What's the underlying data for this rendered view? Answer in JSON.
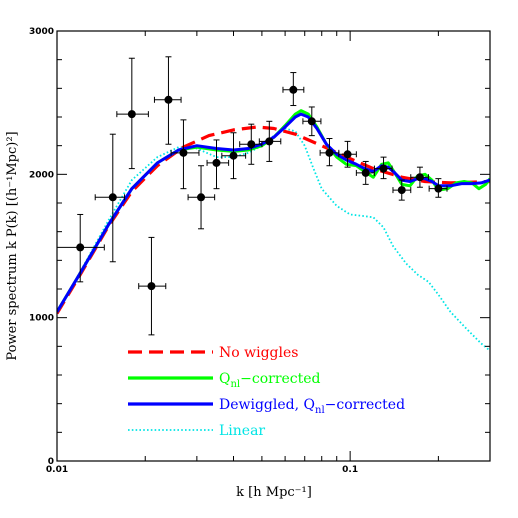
{
  "chart_data": {
    "type": "line",
    "xscale": "log",
    "xlim": [
      0.01,
      0.3
    ],
    "ylim": [
      0,
      3000
    ],
    "xlabel": "k [h Mpc⁻¹]",
    "ylabel": "Power spectrum k P(k) [(h⁻¹Mpc)²]",
    "x_ticks": [
      {
        "value": 0.01,
        "label": "0.01"
      },
      {
        "value": 0.1,
        "label": "0.1"
      }
    ],
    "y_ticks": [
      {
        "value": 0,
        "label": "0"
      },
      {
        "value": 1000,
        "label": "1000"
      },
      {
        "value": 2000,
        "label": "2000"
      },
      {
        "value": 3000,
        "label": "3000"
      }
    ],
    "grid": false,
    "legend_position": "bottom-left",
    "series": [
      {
        "name": "No wiggles",
        "color": "#ff0000",
        "style": "dashed",
        "points": [
          [
            0.01,
            1030
          ],
          [
            0.012,
            1300
          ],
          [
            0.015,
            1640
          ],
          [
            0.018,
            1880
          ],
          [
            0.022,
            2060
          ],
          [
            0.027,
            2190
          ],
          [
            0.033,
            2270
          ],
          [
            0.04,
            2310
          ],
          [
            0.048,
            2330
          ],
          [
            0.055,
            2320
          ],
          [
            0.065,
            2280
          ],
          [
            0.08,
            2200
          ],
          [
            0.1,
            2110
          ],
          [
            0.12,
            2040
          ],
          [
            0.15,
            1980
          ],
          [
            0.18,
            1950
          ],
          [
            0.22,
            1940
          ],
          [
            0.3,
            1950
          ]
        ]
      },
      {
        "name": "Q",
        "color": "#00ff00",
        "style": "solid",
        "points": [
          [
            0.01,
            1040
          ],
          [
            0.012,
            1310
          ],
          [
            0.015,
            1650
          ],
          [
            0.018,
            1900
          ],
          [
            0.022,
            2080
          ],
          [
            0.026,
            2170
          ],
          [
            0.03,
            2190
          ],
          [
            0.035,
            2170
          ],
          [
            0.04,
            2160
          ],
          [
            0.045,
            2170
          ],
          [
            0.05,
            2200
          ],
          [
            0.055,
            2260
          ],
          [
            0.06,
            2340
          ],
          [
            0.065,
            2420
          ],
          [
            0.068,
            2445
          ],
          [
            0.072,
            2420
          ],
          [
            0.077,
            2330
          ],
          [
            0.083,
            2210
          ],
          [
            0.09,
            2120
          ],
          [
            0.097,
            2070
          ],
          [
            0.105,
            2060
          ],
          [
            0.112,
            2020
          ],
          [
            0.12,
            1980
          ],
          [
            0.128,
            2070
          ],
          [
            0.135,
            2080
          ],
          [
            0.142,
            2010
          ],
          [
            0.15,
            1930
          ],
          [
            0.16,
            1920
          ],
          [
            0.17,
            1990
          ],
          [
            0.18,
            2000
          ],
          [
            0.19,
            1960
          ],
          [
            0.2,
            1890
          ],
          [
            0.215,
            1900
          ],
          [
            0.23,
            1940
          ],
          [
            0.245,
            1950
          ],
          [
            0.26,
            1940
          ],
          [
            0.275,
            1900
          ],
          [
            0.29,
            1930
          ],
          [
            0.3,
            1970
          ]
        ]
      },
      {
        "name": "Dewiggled, Q",
        "color": "#0000ff",
        "style": "solid",
        "points": [
          [
            0.01,
            1040
          ],
          [
            0.012,
            1310
          ],
          [
            0.015,
            1650
          ],
          [
            0.018,
            1900
          ],
          [
            0.022,
            2080
          ],
          [
            0.026,
            2170
          ],
          [
            0.03,
            2200
          ],
          [
            0.035,
            2180
          ],
          [
            0.04,
            2170
          ],
          [
            0.045,
            2180
          ],
          [
            0.05,
            2210
          ],
          [
            0.055,
            2260
          ],
          [
            0.06,
            2330
          ],
          [
            0.065,
            2400
          ],
          [
            0.068,
            2420
          ],
          [
            0.072,
            2400
          ],
          [
            0.077,
            2320
          ],
          [
            0.083,
            2210
          ],
          [
            0.09,
            2140
          ],
          [
            0.097,
            2100
          ],
          [
            0.105,
            2070
          ],
          [
            0.112,
            2040
          ],
          [
            0.12,
            2020
          ],
          [
            0.128,
            2060
          ],
          [
            0.135,
            2050
          ],
          [
            0.142,
            2010
          ],
          [
            0.15,
            1960
          ],
          [
            0.16,
            1950
          ],
          [
            0.17,
            1970
          ],
          [
            0.18,
            1970
          ],
          [
            0.19,
            1950
          ],
          [
            0.2,
            1920
          ],
          [
            0.22,
            1920
          ],
          [
            0.24,
            1935
          ],
          [
            0.26,
            1935
          ],
          [
            0.28,
            1940
          ],
          [
            0.3,
            1960
          ]
        ]
      },
      {
        "name": "Linear",
        "color": "#00e5e5",
        "style": "dotted",
        "points": [
          [
            0.01,
            1030
          ],
          [
            0.012,
            1320
          ],
          [
            0.015,
            1680
          ],
          [
            0.018,
            1960
          ],
          [
            0.022,
            2120
          ],
          [
            0.026,
            2190
          ],
          [
            0.03,
            2180
          ],
          [
            0.035,
            2120
          ],
          [
            0.04,
            2120
          ],
          [
            0.045,
            2150
          ],
          [
            0.05,
            2200
          ],
          [
            0.055,
            2270
          ],
          [
            0.06,
            2320
          ],
          [
            0.065,
            2300
          ],
          [
            0.07,
            2200
          ],
          [
            0.075,
            2040
          ],
          [
            0.08,
            1900
          ],
          [
            0.09,
            1780
          ],
          [
            0.1,
            1720
          ],
          [
            0.11,
            1710
          ],
          [
            0.12,
            1700
          ],
          [
            0.13,
            1630
          ],
          [
            0.14,
            1500
          ],
          [
            0.155,
            1380
          ],
          [
            0.17,
            1300
          ],
          [
            0.185,
            1250
          ],
          [
            0.2,
            1160
          ],
          [
            0.22,
            1040
          ],
          [
            0.25,
            920
          ],
          [
            0.28,
            820
          ],
          [
            0.3,
            770
          ]
        ]
      }
    ],
    "data_points": [
      {
        "k": 0.012,
        "y": 1490,
        "xerr": [
          0.01,
          0.0145
        ],
        "yerr": [
          1250,
          1720
        ]
      },
      {
        "k": 0.0155,
        "y": 1840,
        "xerr": [
          0.0135,
          0.017
        ],
        "yerr": [
          1390,
          2280
        ]
      },
      {
        "k": 0.018,
        "y": 2420,
        "xerr": [
          0.016,
          0.0205
        ],
        "yerr": [
          2040,
          2810
        ]
      },
      {
        "k": 0.021,
        "y": 1220,
        "xerr": [
          0.019,
          0.0235
        ],
        "yerr": [
          880,
          1560
        ]
      },
      {
        "k": 0.024,
        "y": 2520,
        "xerr": [
          0.0215,
          0.0265
        ],
        "yerr": [
          2210,
          2820
        ]
      },
      {
        "k": 0.027,
        "y": 2150,
        "xerr": [
          0.0245,
          0.0305
        ],
        "yerr": [
          1900,
          2380
        ]
      },
      {
        "k": 0.031,
        "y": 1840,
        "xerr": [
          0.028,
          0.0345
        ],
        "yerr": [
          1620,
          2060
        ]
      },
      {
        "k": 0.035,
        "y": 2080,
        "xerr": [
          0.0325,
          0.0385
        ],
        "yerr": [
          1900,
          2240
        ]
      },
      {
        "k": 0.04,
        "y": 2130,
        "xerr": [
          0.0365,
          0.044
        ],
        "yerr": [
          1970,
          2290
        ]
      },
      {
        "k": 0.046,
        "y": 2210,
        "xerr": [
          0.042,
          0.05
        ],
        "yerr": [
          2070,
          2350
        ]
      },
      {
        "k": 0.053,
        "y": 2230,
        "xerr": [
          0.049,
          0.058
        ],
        "yerr": [
          2090,
          2370
        ]
      },
      {
        "k": 0.064,
        "y": 2590,
        "xerr": [
          0.059,
          0.0695
        ],
        "yerr": [
          2480,
          2710
        ]
      },
      {
        "k": 0.074,
        "y": 2370,
        "xerr": [
          0.069,
          0.0795
        ],
        "yerr": [
          2270,
          2470
        ]
      },
      {
        "k": 0.085,
        "y": 2150,
        "xerr": [
          0.079,
          0.0915
        ],
        "yerr": [
          2060,
          2250
        ]
      },
      {
        "k": 0.098,
        "y": 2140,
        "xerr": [
          0.0915,
          0.105
        ],
        "yerr": [
          2050,
          2230
        ]
      },
      {
        "k": 0.113,
        "y": 2010,
        "xerr": [
          0.105,
          0.121
        ],
        "yerr": [
          1930,
          2090
        ]
      },
      {
        "k": 0.13,
        "y": 2040,
        "xerr": [
          0.121,
          0.139
        ],
        "yerr": [
          1970,
          2120
        ]
      },
      {
        "k": 0.15,
        "y": 1890,
        "xerr": [
          0.14,
          0.161
        ],
        "yerr": [
          1820,
          1960
        ]
      },
      {
        "k": 0.173,
        "y": 1980,
        "xerr": [
          0.161,
          0.185
        ],
        "yerr": [
          1910,
          2050
        ]
      },
      {
        "k": 0.2,
        "y": 1900,
        "xerr": [
          0.186,
          0.214
        ],
        "yerr": [
          1840,
          1970
        ]
      }
    ],
    "legend": [
      {
        "label": "No wiggles",
        "sub": "",
        "suffix": "",
        "color": "#ff0000",
        "style": "dashed"
      },
      {
        "label": "Q",
        "sub": "nl",
        "suffix": "−corrected",
        "color": "#00ff00",
        "style": "solid"
      },
      {
        "label": "Dewiggled, Q",
        "sub": "nl",
        "suffix": "−corrected",
        "color": "#0000ff",
        "style": "solid"
      },
      {
        "label": "Linear",
        "sub": "",
        "suffix": "",
        "color": "#00e5e5",
        "style": "dotted"
      }
    ]
  }
}
